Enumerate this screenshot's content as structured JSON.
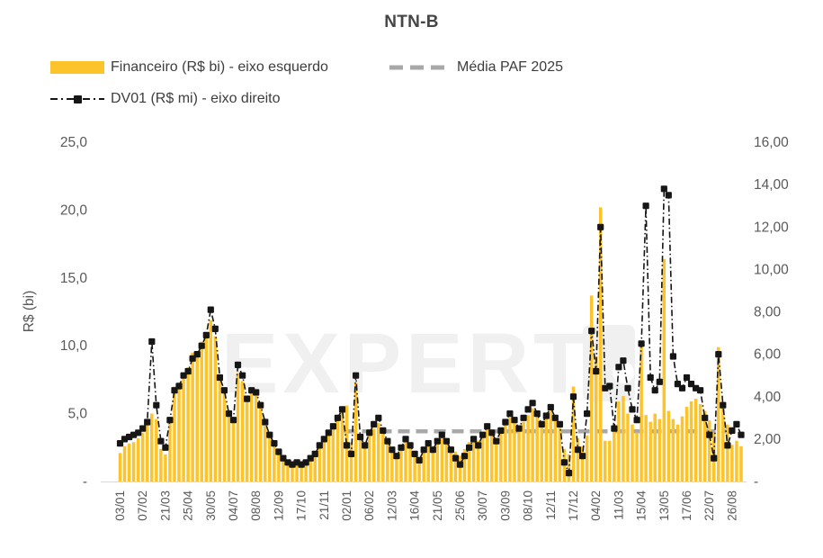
{
  "title": "NTN-B",
  "legend": {
    "financeiro": "Financeiro (R$ bi) - eixo esquerdo",
    "media": "Média PAF 2025",
    "dv01": "DV01 (R$ mi) - eixo direito"
  },
  "watermark": "EXPERT",
  "colors": {
    "bar": "#FDC32B",
    "dv01": "#161616",
    "media": "#A8A8A8",
    "axis_text": "#595959",
    "title_text": "#454545",
    "watermark": "#F0F0F0",
    "baseline": "#D9D9D9"
  },
  "chart_data": {
    "type": "bar+line combo (dual axis)",
    "title": "NTN-B",
    "grid": false,
    "legend_position": "top-left",
    "label_every": 5,
    "x_tick_labels": [
      "03/01",
      "07/02",
      "21/03",
      "25/04",
      "30/05",
      "04/07",
      "08/08",
      "12/09",
      "17/10",
      "21/11",
      "02/01",
      "06/02",
      "12/03",
      "16/04",
      "21/05",
      "25/06",
      "30/07",
      "03/09",
      "08/10",
      "12/11",
      "17/12",
      "04/02",
      "11/03",
      "15/04",
      "13/05",
      "17/06",
      "22/07",
      "26/08"
    ],
    "left_axis": {
      "title": "R$ (bi)",
      "ticks": [
        "25,0",
        "20,0",
        "15,0",
        "10,0",
        "5,0",
        "-"
      ],
      "tick_values": [
        25,
        20,
        15,
        10,
        5,
        0
      ],
      "range": [
        0,
        25
      ]
    },
    "right_axis": {
      "ticks": [
        "16,00",
        "14,00",
        "12,00",
        "10,00",
        "8,00",
        "6,00",
        "4,00",
        "2,00",
        "-"
      ],
      "tick_values": [
        16,
        14,
        12,
        10,
        8,
        6,
        4,
        2,
        0
      ],
      "range": [
        0,
        16
      ]
    },
    "series": [
      {
        "name": "Financeiro (R$ bi)",
        "type": "bar",
        "axis": "left",
        "values": [
          2.1,
          2.6,
          2.8,
          2.9,
          3.2,
          3.6,
          4.2,
          5.0,
          4.6,
          2.4,
          2.0,
          4.7,
          7.0,
          7.3,
          8.0,
          8.4,
          9.5,
          9.5,
          10.3,
          11.0,
          11.9,
          10.7,
          7.4,
          6.5,
          4.8,
          4.3,
          8.0,
          7.4,
          5.9,
          6.5,
          6.3,
          5.4,
          4.1,
          3.3,
          2.7,
          2.2,
          1.7,
          1.4,
          1.2,
          1.4,
          1.1,
          1.3,
          1.6,
          2.0,
          2.5,
          3.0,
          3.4,
          3.9,
          4.5,
          5.1,
          5.6,
          2.9,
          7.3,
          3.1,
          2.6,
          3.4,
          3.9,
          4.3,
          3.6,
          2.9,
          2.4,
          2.0,
          2.6,
          3.1,
          2.7,
          2.2,
          1.8,
          2.4,
          2.9,
          2.5,
          3.0,
          3.5,
          3.1,
          2.6,
          2.2,
          1.9,
          2.4,
          2.9,
          3.3,
          3.0,
          3.5,
          4.0,
          3.6,
          3.1,
          3.7,
          4.2,
          4.7,
          4.3,
          3.8,
          4.4,
          4.9,
          5.4,
          4.8,
          4.2,
          4.7,
          5.2,
          4.6,
          4.2,
          2.4,
          2.0,
          7.0,
          3.2,
          2.6,
          3.4,
          13.7,
          9.2,
          20.2,
          3.0,
          3.0,
          4.0,
          5.9,
          6.3,
          5.0,
          4.2,
          3.6,
          10.2,
          4.9,
          4.4,
          5.0,
          4.6,
          16.4,
          5.2,
          4.6,
          4.2,
          4.8,
          5.5,
          5.9,
          6.1,
          5.7,
          5.2,
          4.5,
          3.6,
          9.9,
          5.5,
          4.2,
          2.7,
          3.0,
          2.6
        ]
      },
      {
        "name": "DV01 (R$ mi)",
        "type": "line",
        "axis": "right",
        "marker": "square",
        "values": [
          1.8,
          2.0,
          2.1,
          2.2,
          2.3,
          2.5,
          2.8,
          6.6,
          3.6,
          1.9,
          1.6,
          2.9,
          4.3,
          4.5,
          5.0,
          5.2,
          5.8,
          6.0,
          6.4,
          6.9,
          8.1,
          7.2,
          4.9,
          4.3,
          3.2,
          2.9,
          5.5,
          5.0,
          3.9,
          4.3,
          4.2,
          3.6,
          2.8,
          2.2,
          1.8,
          1.4,
          1.1,
          0.9,
          0.8,
          0.9,
          0.8,
          0.9,
          1.1,
          1.3,
          1.7,
          2.0,
          2.3,
          2.6,
          3.0,
          3.4,
          1.7,
          1.3,
          5.0,
          2.1,
          1.7,
          2.3,
          2.7,
          3.0,
          2.4,
          1.9,
          1.5,
          1.2,
          1.6,
          2.0,
          1.7,
          1.3,
          1.0,
          1.5,
          1.8,
          1.5,
          1.9,
          2.2,
          1.9,
          1.5,
          1.1,
          0.8,
          1.2,
          1.6,
          2.0,
          1.7,
          2.2,
          2.6,
          2.3,
          1.9,
          2.4,
          2.8,
          3.2,
          2.9,
          2.5,
          3.0,
          3.4,
          3.7,
          3.2,
          2.7,
          3.1,
          3.5,
          3.0,
          2.7,
          0.9,
          0.4,
          4.0,
          1.5,
          1.2,
          3.2,
          7.1,
          5.2,
          12.0,
          4.4,
          4.5,
          2.5,
          5.4,
          5.7,
          4.4,
          3.4,
          2.9,
          6.5,
          13.0,
          4.9,
          4.3,
          4.7,
          13.8,
          13.5,
          5.9,
          4.6,
          4.4,
          4.9,
          4.6,
          4.4,
          4.3,
          3.0,
          2.2,
          1.1,
          6.0,
          3.6,
          1.7,
          2.4,
          2.7,
          2.2
        ]
      },
      {
        "name": "Média PAF 2025",
        "type": "hline",
        "axis": "left",
        "value": 3.7,
        "start_index": 50
      }
    ]
  }
}
